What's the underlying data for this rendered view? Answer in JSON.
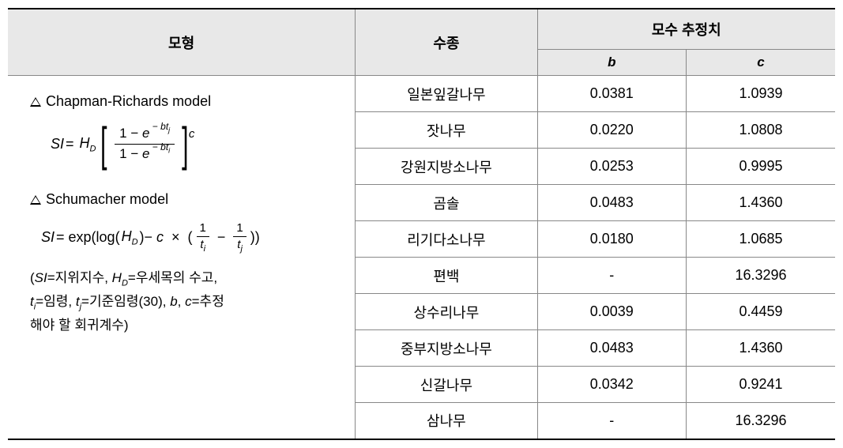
{
  "headers": {
    "model": "모형",
    "species": "수종",
    "param_group": "모수 추정치",
    "param_b": "b",
    "param_c": "c"
  },
  "models": {
    "cr_title": "Chapman-Richards model",
    "sch_title": "Schumacher model"
  },
  "notes": {
    "line1a": "(",
    "si_label": "SI",
    "si_def": "=지위지수, ",
    "hd_label": "H",
    "hd_sub": "D",
    "hd_def": "=우세목의 수고,",
    "line2_ti": "t",
    "line2_ti_sub": "i",
    "line2_ti_def": "=임령, ",
    "line2_tj": "t",
    "line2_tj_sub": "j",
    "line2_tj_def": "=기준임령(30), ",
    "line2_b": "b",
    "line2_comma": ", ",
    "line2_c": "c",
    "line2_end": "=추정",
    "line3": "해야 할 회귀계수)"
  },
  "rows": [
    {
      "species": "일본잎갈나무",
      "b": "0.0381",
      "c": "1.0939"
    },
    {
      "species": "잣나무",
      "b": "0.0220",
      "c": "1.0808"
    },
    {
      "species": "강원지방소나무",
      "b": "0.0253",
      "c": "0.9995"
    },
    {
      "species": "곰솔",
      "b": "0.0483",
      "c": "1.4360"
    },
    {
      "species": "리기다소나무",
      "b": "0.0180",
      "c": "1.0685"
    },
    {
      "species": "편백",
      "b": "-",
      "c": "16.3296"
    },
    {
      "species": "상수리나무",
      "b": "0.0039",
      "c": "0.4459"
    },
    {
      "species": "중부지방소나무",
      "b": "0.0483",
      "c": "1.4360"
    },
    {
      "species": "신갈나무",
      "b": "0.0342",
      "c": "0.9241"
    },
    {
      "species": "삼나무",
      "b": "-",
      "c": "16.3296"
    }
  ],
  "styling": {
    "header_bg": "#e8e8e8",
    "border_color": "#888888",
    "border_strong": "#000000",
    "font_size_body": 18,
    "font_size_header": 18
  }
}
